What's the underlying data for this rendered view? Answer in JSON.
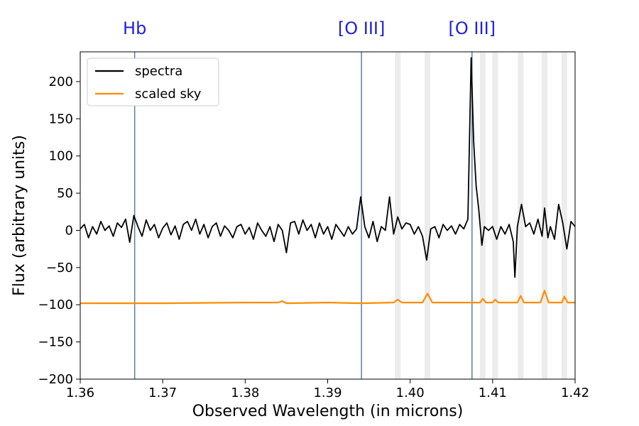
{
  "chart_data": {
    "type": "line",
    "xlabel": "Observed Wavelength (in microns)",
    "ylabel": "Flux (arbitrary units)",
    "xlim": [
      1.36,
      1.42
    ],
    "ylim": [
      -200,
      240
    ],
    "x_ticks": [
      1.36,
      1.37,
      1.38,
      1.39,
      1.4,
      1.41,
      1.42
    ],
    "x_tick_labels": [
      "1.36",
      "1.37",
      "1.38",
      "1.39",
      "1.40",
      "1.41",
      "1.42"
    ],
    "y_ticks": [
      -200,
      -150,
      -100,
      -50,
      0,
      50,
      100,
      150,
      200
    ],
    "y_tick_labels": [
      "−200",
      "−150",
      "−100",
      "−50",
      "0",
      "50",
      "100",
      "150",
      "200"
    ],
    "legend": {
      "position": "upper-left",
      "entries": [
        {
          "label": "spectra",
          "color": "#000000"
        },
        {
          "label": "scaled sky",
          "color": "#ff8c00"
        }
      ]
    },
    "emission_lines": [
      {
        "label": "Hb",
        "x": 1.3666,
        "color": "#1f1fdd"
      },
      {
        "label": "[O III]",
        "x": 1.3941,
        "color": "#1f1fdd"
      },
      {
        "label": "[O III]",
        "x": 1.4075,
        "color": "#1f1fdd"
      }
    ],
    "sky_bands": [
      1.3985,
      1.4021,
      1.4088,
      1.4103,
      1.4134,
      1.4163,
      1.4187
    ],
    "series": [
      {
        "name": "spectra",
        "color": "#000000",
        "points": [
          [
            1.36,
            2
          ],
          [
            1.3605,
            8
          ],
          [
            1.361,
            -10
          ],
          [
            1.3615,
            5
          ],
          [
            1.362,
            -5
          ],
          [
            1.3625,
            12
          ],
          [
            1.363,
            0
          ],
          [
            1.3635,
            6
          ],
          [
            1.364,
            -8
          ],
          [
            1.3645,
            10
          ],
          [
            1.365,
            4
          ],
          [
            1.3655,
            15
          ],
          [
            1.366,
            -16
          ],
          [
            1.3665,
            20
          ],
          [
            1.367,
            5
          ],
          [
            1.3675,
            -8
          ],
          [
            1.368,
            14
          ],
          [
            1.3685,
            0
          ],
          [
            1.369,
            8
          ],
          [
            1.3695,
            -10
          ],
          [
            1.37,
            3
          ],
          [
            1.3705,
            10
          ],
          [
            1.371,
            -6
          ],
          [
            1.3715,
            6
          ],
          [
            1.372,
            -12
          ],
          [
            1.3725,
            8
          ],
          [
            1.373,
            12
          ],
          [
            1.3735,
            0
          ],
          [
            1.374,
            15
          ],
          [
            1.3745,
            -5
          ],
          [
            1.375,
            8
          ],
          [
            1.3755,
            -10
          ],
          [
            1.376,
            5
          ],
          [
            1.3765,
            10
          ],
          [
            1.377,
            -8
          ],
          [
            1.3775,
            6
          ],
          [
            1.378,
            0
          ],
          [
            1.3785,
            -10
          ],
          [
            1.379,
            5
          ],
          [
            1.3795,
            8
          ],
          [
            1.38,
            -5
          ],
          [
            1.3805,
            4
          ],
          [
            1.381,
            -12
          ],
          [
            1.3815,
            10
          ],
          [
            1.382,
            0
          ],
          [
            1.3825,
            -8
          ],
          [
            1.383,
            5
          ],
          [
            1.3835,
            -15
          ],
          [
            1.384,
            8
          ],
          [
            1.3845,
            0
          ],
          [
            1.385,
            -30
          ],
          [
            1.3855,
            10
          ],
          [
            1.386,
            12
          ],
          [
            1.3865,
            -5
          ],
          [
            1.387,
            14
          ],
          [
            1.3875,
            0
          ],
          [
            1.388,
            8
          ],
          [
            1.3885,
            -10
          ],
          [
            1.389,
            10
          ],
          [
            1.3895,
            -5
          ],
          [
            1.39,
            5
          ],
          [
            1.3905,
            -12
          ],
          [
            1.391,
            8
          ],
          [
            1.3915,
            0
          ],
          [
            1.392,
            -8
          ],
          [
            1.3925,
            5
          ],
          [
            1.393,
            -5
          ],
          [
            1.3935,
            2
          ],
          [
            1.394,
            45
          ],
          [
            1.3945,
            5
          ],
          [
            1.395,
            -10
          ],
          [
            1.3955,
            12
          ],
          [
            1.396,
            -15
          ],
          [
            1.3965,
            5
          ],
          [
            1.397,
            0
          ],
          [
            1.3975,
            45
          ],
          [
            1.398,
            -5
          ],
          [
            1.3985,
            18
          ],
          [
            1.399,
            2
          ],
          [
            1.3995,
            10
          ],
          [
            1.4,
            8
          ],
          [
            1.4005,
            -5
          ],
          [
            1.401,
            5
          ],
          [
            1.4015,
            -8
          ],
          [
            1.402,
            -40
          ],
          [
            1.4025,
            2
          ],
          [
            1.403,
            5
          ],
          [
            1.4035,
            -10
          ],
          [
            1.404,
            8
          ],
          [
            1.4045,
            0
          ],
          [
            1.405,
            6
          ],
          [
            1.4055,
            -5
          ],
          [
            1.406,
            8
          ],
          [
            1.4065,
            2
          ],
          [
            1.407,
            15
          ],
          [
            1.4074,
            232
          ],
          [
            1.4077,
            120
          ],
          [
            1.408,
            60
          ],
          [
            1.4083,
            30
          ],
          [
            1.4087,
            -20
          ],
          [
            1.409,
            5
          ],
          [
            1.4095,
            0
          ],
          [
            1.41,
            5
          ],
          [
            1.4105,
            -12
          ],
          [
            1.411,
            5
          ],
          [
            1.4115,
            -5
          ],
          [
            1.412,
            8
          ],
          [
            1.4125,
            -15
          ],
          [
            1.4127,
            -63
          ],
          [
            1.413,
            5
          ],
          [
            1.4135,
            35
          ],
          [
            1.414,
            5
          ],
          [
            1.4145,
            10
          ],
          [
            1.415,
            -5
          ],
          [
            1.4155,
            15
          ],
          [
            1.416,
            -8
          ],
          [
            1.4163,
            30
          ],
          [
            1.4167,
            -10
          ],
          [
            1.417,
            5
          ],
          [
            1.4175,
            -12
          ],
          [
            1.418,
            35
          ],
          [
            1.4185,
            10
          ],
          [
            1.419,
            -25
          ],
          [
            1.4195,
            12
          ],
          [
            1.42,
            5
          ]
        ]
      },
      {
        "name": "scaled sky",
        "color": "#ff8c00",
        "points": [
          [
            1.36,
            -98
          ],
          [
            1.37,
            -98
          ],
          [
            1.38,
            -97
          ],
          [
            1.384,
            -97
          ],
          [
            1.3845,
            -95
          ],
          [
            1.385,
            -98
          ],
          [
            1.39,
            -97
          ],
          [
            1.394,
            -98
          ],
          [
            1.398,
            -97
          ],
          [
            1.3985,
            -93
          ],
          [
            1.399,
            -97
          ],
          [
            1.4015,
            -97
          ],
          [
            1.4021,
            -85
          ],
          [
            1.4027,
            -97
          ],
          [
            1.4085,
            -97
          ],
          [
            1.4088,
            -92
          ],
          [
            1.4092,
            -97
          ],
          [
            1.41,
            -97
          ],
          [
            1.4103,
            -93
          ],
          [
            1.4107,
            -97
          ],
          [
            1.413,
            -97
          ],
          [
            1.4134,
            -88
          ],
          [
            1.4138,
            -97
          ],
          [
            1.4158,
            -97
          ],
          [
            1.4163,
            -81
          ],
          [
            1.4168,
            -97
          ],
          [
            1.4184,
            -97
          ],
          [
            1.4187,
            -89
          ],
          [
            1.4191,
            -97
          ],
          [
            1.42,
            -97
          ]
        ]
      }
    ]
  }
}
